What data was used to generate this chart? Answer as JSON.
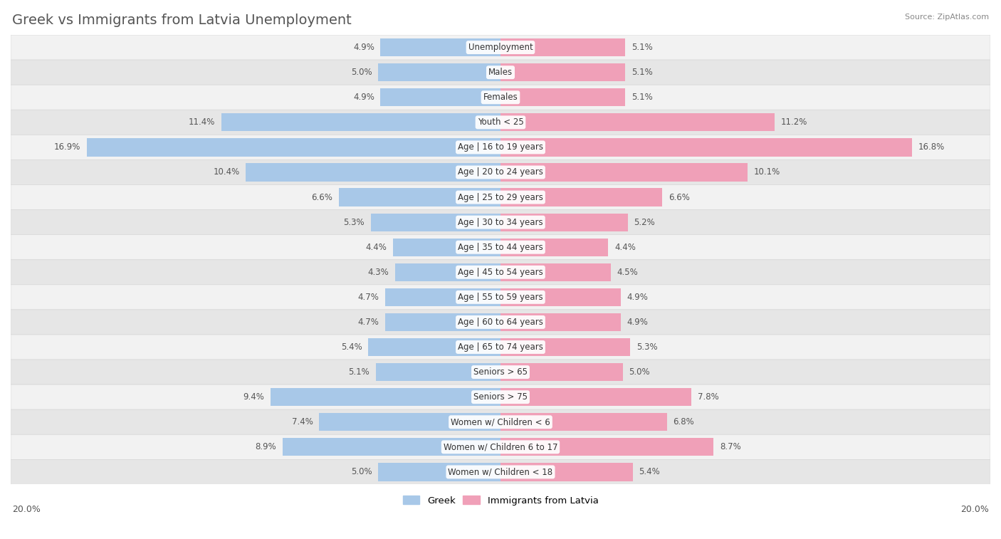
{
  "title": "Greek vs Immigrants from Latvia Unemployment",
  "source": "Source: ZipAtlas.com",
  "categories": [
    "Unemployment",
    "Males",
    "Females",
    "Youth < 25",
    "Age | 16 to 19 years",
    "Age | 20 to 24 years",
    "Age | 25 to 29 years",
    "Age | 30 to 34 years",
    "Age | 35 to 44 years",
    "Age | 45 to 54 years",
    "Age | 55 to 59 years",
    "Age | 60 to 64 years",
    "Age | 65 to 74 years",
    "Seniors > 65",
    "Seniors > 75",
    "Women w/ Children < 6",
    "Women w/ Children 6 to 17",
    "Women w/ Children < 18"
  ],
  "greek_values": [
    4.9,
    5.0,
    4.9,
    11.4,
    16.9,
    10.4,
    6.6,
    5.3,
    4.4,
    4.3,
    4.7,
    4.7,
    5.4,
    5.1,
    9.4,
    7.4,
    8.9,
    5.0
  ],
  "latvia_values": [
    5.1,
    5.1,
    5.1,
    11.2,
    16.8,
    10.1,
    6.6,
    5.2,
    4.4,
    4.5,
    4.9,
    4.9,
    5.3,
    5.0,
    7.8,
    6.8,
    8.7,
    5.4
  ],
  "greek_color": "#a8c8e8",
  "latvia_color": "#f0a0b8",
  "greek_highlight_color": "#6699cc",
  "latvia_highlight_color": "#e06080",
  "row_bg_light": "#f2f2f2",
  "row_bg_dark": "#e6e6e6",
  "row_border": "#d8d8d8",
  "max_value": 20.0,
  "legend_greek": "Greek",
  "legend_latvia": "Immigrants from Latvia",
  "title_fontsize": 14,
  "label_fontsize": 8.5,
  "value_fontsize": 8.5,
  "axis_fontsize": 9,
  "background_color": "#ffffff",
  "text_color": "#555555",
  "value_text_color": "#555555"
}
